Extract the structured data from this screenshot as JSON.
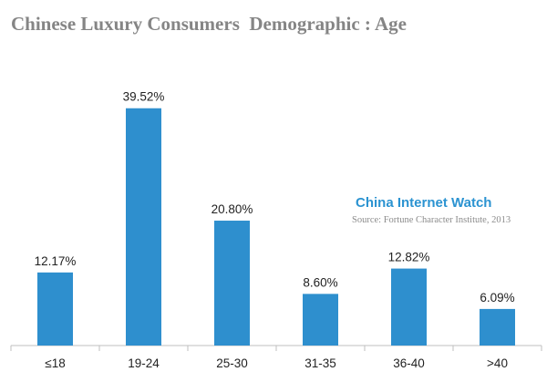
{
  "chart_data": {
    "type": "bar",
    "title": "Chinese Luxury Consumers  Demographic : Age",
    "categories": [
      "≤18",
      "19-24",
      "25-30",
      "31-35",
      "36-40",
      ">40"
    ],
    "values": [
      12.17,
      39.52,
      20.8,
      8.6,
      12.82,
      6.09
    ],
    "value_labels": [
      "12.17%",
      "39.52%",
      "20.80%",
      "8.60%",
      "12.82%",
      "6.09%"
    ],
    "xlabel": "",
    "ylabel": "",
    "ylim": [
      0,
      41
    ],
    "grid": false,
    "bar_color": "#2e8fce"
  },
  "watermark": {
    "brand": "China Internet Watch",
    "source": "Source: Fortune Character Institute, 2013"
  }
}
